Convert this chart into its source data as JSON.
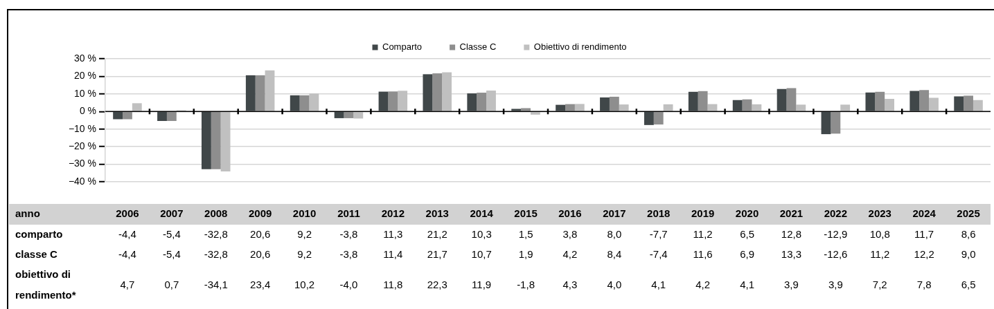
{
  "chart_data": {
    "type": "bar",
    "categories": [
      "2006",
      "2007",
      "2008",
      "2009",
      "2010",
      "2011",
      "2012",
      "2013",
      "2014",
      "2015",
      "2016",
      "2017",
      "2018",
      "2019",
      "2020",
      "2021",
      "2022",
      "2023",
      "2024",
      "2025"
    ],
    "series": [
      {
        "name": "Comparto",
        "color": "#404749",
        "values": [
          -4.4,
          -5.4,
          -32.8,
          20.6,
          9.2,
          -3.8,
          11.3,
          21.2,
          10.3,
          1.5,
          3.8,
          8.0,
          -7.7,
          11.2,
          6.5,
          12.8,
          -12.9,
          10.8,
          11.7,
          8.6
        ],
        "value_labels": [
          "-4,4",
          "-5,4",
          "-32,8",
          "20,6",
          "9,2",
          "-3,8",
          "11,3",
          "21,2",
          "10,3",
          "1,5",
          "3,8",
          "8,0",
          "-7,7",
          "11,2",
          "6,5",
          "12,8",
          "-12,9",
          "10,8",
          "11,7",
          "8,6"
        ]
      },
      {
        "name": "Classe C",
        "color": "#8e8e8e",
        "values": [
          -4.4,
          -5.4,
          -32.8,
          20.6,
          9.2,
          -3.8,
          11.4,
          21.7,
          10.7,
          1.9,
          4.2,
          8.4,
          -7.4,
          11.6,
          6.9,
          13.3,
          -12.6,
          11.2,
          12.2,
          9.0
        ],
        "value_labels": [
          "-4,4",
          "-5,4",
          "-32,8",
          "20,6",
          "9,2",
          "-3,8",
          "11,4",
          "21,7",
          "10,7",
          "1,9",
          "4,2",
          "8,4",
          "-7,4",
          "11,6",
          "6,9",
          "13,3",
          "-12,6",
          "11,2",
          "12,2",
          "9,0"
        ]
      },
      {
        "name": "Obiettivo di rendimento",
        "color": "#c0c0c0",
        "values": [
          4.7,
          0.7,
          -34.1,
          23.4,
          10.2,
          -4.0,
          11.8,
          22.3,
          11.9,
          -1.8,
          4.3,
          4.0,
          4.1,
          4.2,
          4.1,
          3.9,
          3.9,
          7.2,
          7.8,
          6.5
        ],
        "value_labels": [
          "4,7",
          "0,7",
          "-34,1",
          "23,4",
          "10,2",
          "-4,0",
          "11,8",
          "22,3",
          "11,9",
          "-1,8",
          "4,3",
          "4,0",
          "4,1",
          "4,2",
          "4,1",
          "3,9",
          "3,9",
          "7,2",
          "7,8",
          "6,5"
        ]
      }
    ],
    "annotations": [
      "anno",
      "comparto",
      "classe C",
      "obiettivo di rendimento*"
    ],
    "ylim": [
      -40,
      30
    ],
    "yticks": [
      {
        "value": -40,
        "label": "−40 %"
      },
      {
        "value": -30,
        "label": "−30 %"
      },
      {
        "value": -20,
        "label": "−20 %"
      },
      {
        "value": -10,
        "label": "−10 %"
      },
      {
        "value": 0,
        "label": "0 %"
      },
      {
        "value": 10,
        "label": "10 %"
      },
      {
        "value": 20,
        "label": "20 %"
      },
      {
        "value": 30,
        "label": "30 %"
      }
    ],
    "grid": "y",
    "legend": "top"
  }
}
